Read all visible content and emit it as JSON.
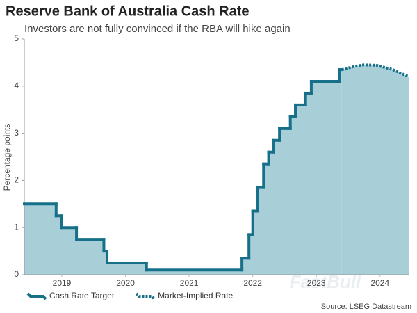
{
  "chart_data": {
    "type": "line",
    "title": "Reserve Bank of Australia Cash Rate",
    "subtitle": "Investors are not fully convinced if the RBA will hike again",
    "ylabel": "Percentage points",
    "source": "Source: LSEG Datastream",
    "watermark": "FastBull",
    "xlim": [
      2018.91,
      2024.95
    ],
    "xticks": [
      {
        "value": 2019.5,
        "label": "2019"
      },
      {
        "value": 2020.5,
        "label": "2020"
      },
      {
        "value": 2021.5,
        "label": "2021"
      },
      {
        "value": 2022.5,
        "label": "2022"
      },
      {
        "value": 2023.5,
        "label": "2023"
      },
      {
        "value": 2024.5,
        "label": "2024"
      }
    ],
    "ylim": [
      0,
      5
    ],
    "yticks": [
      0,
      1,
      2,
      3,
      4,
      5
    ],
    "legend": "bottom",
    "area_color": "#a8cfd7",
    "series": [
      {
        "name": "Cash Rate Target",
        "color": "#17708a",
        "style": "solid",
        "step": true,
        "x": [
          2018.91,
          2019.41,
          2019.49,
          2019.73,
          2020.16,
          2020.21,
          2020.83,
          2022.33,
          2022.44,
          2022.5,
          2022.58,
          2022.67,
          2022.75,
          2022.83,
          2022.92,
          2023.09,
          2023.17,
          2023.33,
          2023.42,
          2023.86,
          2023.9
        ],
        "values": [
          1.5,
          1.25,
          1.0,
          0.75,
          0.5,
          0.25,
          0.1,
          0.35,
          0.85,
          1.35,
          1.85,
          2.35,
          2.6,
          2.85,
          3.1,
          3.35,
          3.6,
          3.85,
          4.1,
          4.35,
          4.35
        ]
      },
      {
        "name": "Market-Implied Rate",
        "color": "#17708a",
        "style": "dotted",
        "step": false,
        "x": [
          2023.9,
          2024.1,
          2024.25,
          2024.45,
          2024.7,
          2024.95
        ],
        "values": [
          4.35,
          4.42,
          4.45,
          4.44,
          4.35,
          4.2
        ]
      }
    ]
  }
}
